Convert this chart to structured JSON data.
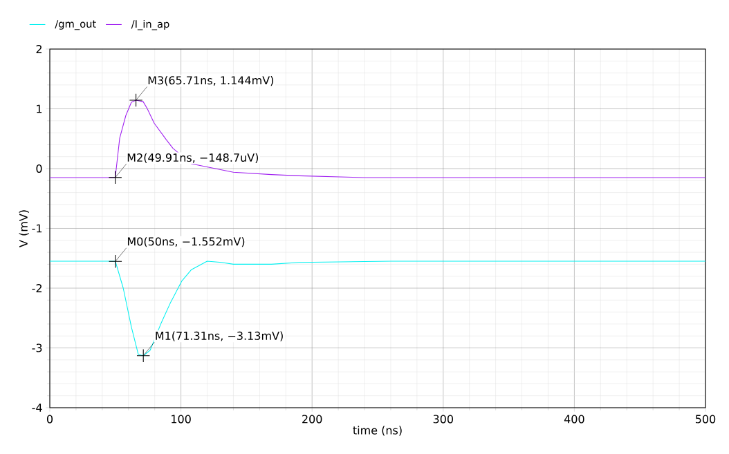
{
  "chart_data": {
    "type": "line",
    "xlabel": "time (ns)",
    "ylabel": "V (mV)",
    "xlim": [
      0,
      500
    ],
    "xticks": [
      0,
      100,
      200,
      300,
      400,
      500
    ],
    "ylim": [
      -4,
      2
    ],
    "yticks": [
      -4,
      -3,
      -2,
      -1,
      0,
      1,
      2
    ],
    "grid": true,
    "legend": "top left",
    "marker": "none",
    "line_style": "solid",
    "series": [
      {
        "name": "/gm_out",
        "color": "#00f0f0",
        "x": [
          0,
          50,
          56,
          62.2,
          67.5,
          71.31,
          76.5,
          85,
          92.3,
          100.7,
          108,
          120,
          131,
          140,
          169,
          190,
          260,
          500
        ],
        "values": [
          -1.55,
          -1.55,
          -2.0,
          -2.65,
          -3.11,
          -3.13,
          -3.04,
          -2.58,
          -2.23,
          -1.88,
          -1.69,
          -1.55,
          -1.57,
          -1.6,
          -1.6,
          -1.57,
          -1.55,
          -1.55
        ]
      },
      {
        "name": "/I_in_ap",
        "color": "#a020f0",
        "x": [
          0,
          49.91,
          53.3,
          58,
          62.2,
          65.71,
          71.2,
          74.4,
          79.6,
          88.6,
          93.9,
          108,
          140,
          169,
          190,
          240,
          500
        ],
        "values": [
          -0.15,
          -0.15,
          0.51,
          0.89,
          1.11,
          1.144,
          1.12,
          1.0,
          0.76,
          0.49,
          0.34,
          0.08,
          -0.06,
          -0.1,
          -0.12,
          -0.15,
          -0.15
        ]
      }
    ],
    "annotations": [
      {
        "text": "M0(50ns, −1.552mV)",
        "x": 50,
        "y": -1.552
      },
      {
        "text": "M1(71.31ns, −3.13mV)",
        "x": 71.31,
        "y": -3.13
      },
      {
        "text": "M2(49.91ns, −148.7uV)",
        "x": 49.91,
        "y": -0.1487
      },
      {
        "text": "M3(65.71ns, 1.144mV)",
        "x": 65.71,
        "y": 1.144
      }
    ]
  }
}
